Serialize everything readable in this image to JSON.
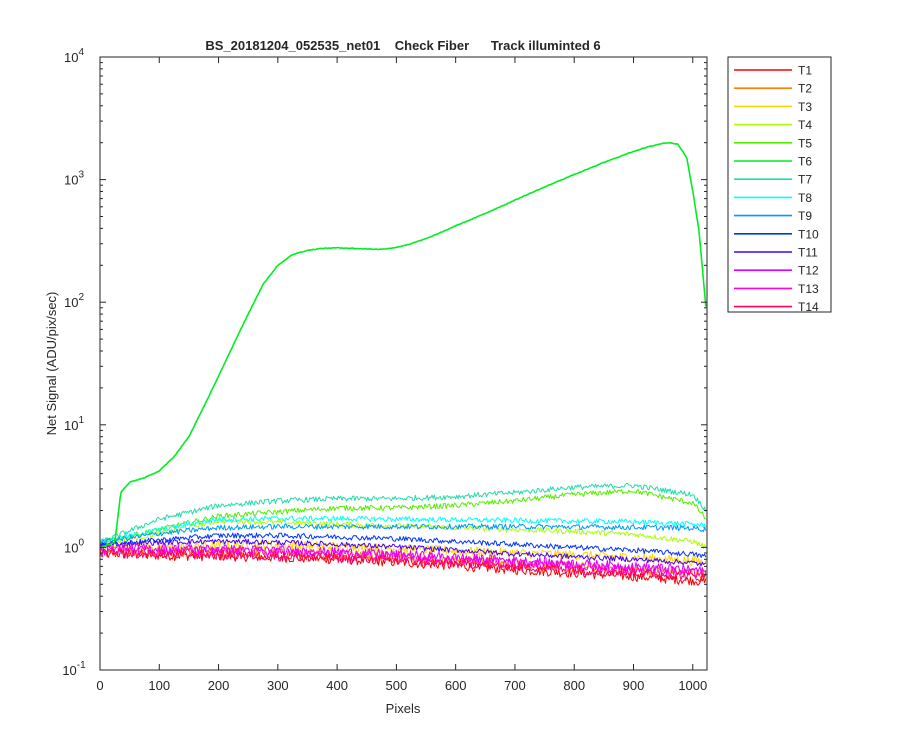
{
  "chart_data": {
    "type": "line",
    "title": "BS_20181204_052535_net01    Check Fiber      Track illuminted 6",
    "xlabel": "Pixels",
    "ylabel": "Net Signal (ADU/pix/sec)",
    "xlim": [
      0,
      1024
    ],
    "ylim": [
      0.1,
      10000
    ],
    "yscale": "log",
    "grid": false,
    "legend_position": "outside-right-top",
    "x_ticks": [
      "0",
      "100",
      "200",
      "300",
      "400",
      "500",
      "600",
      "700",
      "800",
      "900",
      "1000"
    ],
    "y_ticks": [
      {
        "base": "10",
        "exp": "-1"
      },
      {
        "base": "10",
        "exp": "0"
      },
      {
        "base": "10",
        "exp": "1"
      },
      {
        "base": "10",
        "exp": "2"
      },
      {
        "base": "10",
        "exp": "3"
      },
      {
        "base": "10",
        "exp": "4"
      }
    ],
    "series": [
      {
        "name": "T1",
        "color": "#ff0000",
        "x": [
          0,
          100,
          200,
          300,
          400,
          500,
          600,
          700,
          800,
          900,
          1000,
          1023
        ],
        "y": [
          0.9,
          0.86,
          0.85,
          0.83,
          0.8,
          0.76,
          0.71,
          0.66,
          0.62,
          0.58,
          0.54,
          0.52
        ]
      },
      {
        "name": "T2",
        "color": "#ff7f00",
        "x": [
          0,
          100,
          200,
          300,
          400,
          500,
          600,
          700,
          800,
          900,
          1000,
          1023
        ],
        "y": [
          0.95,
          0.92,
          0.92,
          0.9,
          0.87,
          0.84,
          0.79,
          0.74,
          0.7,
          0.66,
          0.62,
          0.6
        ]
      },
      {
        "name": "T3",
        "color": "#ffd400",
        "x": [
          0,
          100,
          200,
          300,
          400,
          500,
          600,
          700,
          800,
          900,
          1000,
          1023
        ],
        "y": [
          1.0,
          1.0,
          1.04,
          1.04,
          1.02,
          0.98,
          0.94,
          0.9,
          0.87,
          0.83,
          0.78,
          0.75
        ]
      },
      {
        "name": "T4",
        "color": "#aaff00",
        "x": [
          0,
          100,
          200,
          300,
          400,
          500,
          600,
          700,
          800,
          900,
          1000,
          1023
        ],
        "y": [
          1.05,
          1.3,
          1.65,
          1.6,
          1.55,
          1.5,
          1.45,
          1.4,
          1.35,
          1.28,
          1.12,
          1.0
        ]
      },
      {
        "name": "T5",
        "color": "#55ee00",
        "x": [
          0,
          100,
          200,
          300,
          400,
          500,
          600,
          700,
          800,
          900,
          1000,
          1023
        ],
        "y": [
          1.1,
          1.4,
          1.8,
          1.95,
          2.1,
          2.1,
          2.2,
          2.4,
          2.7,
          2.9,
          2.3,
          1.7
        ]
      },
      {
        "name": "T6",
        "color": "#00ee22",
        "x": [
          0,
          25,
          35,
          50,
          75,
          100,
          125,
          150,
          175,
          200,
          225,
          250,
          275,
          300,
          325,
          350,
          375,
          400,
          425,
          450,
          475,
          500,
          525,
          550,
          575,
          600,
          625,
          650,
          675,
          700,
          725,
          750,
          775,
          800,
          825,
          850,
          875,
          900,
          925,
          950,
          960,
          975,
          990,
          1000,
          1010,
          1020,
          1023
        ],
        "y": [
          1.0,
          1.1,
          2.8,
          3.4,
          3.7,
          4.2,
          5.5,
          8.0,
          14,
          25,
          45,
          80,
          140,
          200,
          245,
          265,
          275,
          278,
          275,
          272,
          270,
          280,
          300,
          330,
          370,
          420,
          470,
          530,
          600,
          680,
          770,
          870,
          980,
          1100,
          1230,
          1380,
          1530,
          1700,
          1850,
          1980,
          2000,
          1950,
          1500,
          800,
          400,
          120,
          80
        ]
      },
      {
        "name": "T7",
        "color": "#22ddaa",
        "x": [
          0,
          100,
          200,
          300,
          400,
          500,
          600,
          700,
          800,
          900,
          1000,
          1023
        ],
        "y": [
          1.1,
          1.7,
          2.2,
          2.4,
          2.5,
          2.5,
          2.6,
          2.8,
          3.1,
          3.2,
          2.7,
          2.0
        ]
      },
      {
        "name": "T8",
        "color": "#00ffff",
        "x": [
          0,
          100,
          200,
          300,
          400,
          500,
          600,
          700,
          800,
          900,
          1000,
          1023
        ],
        "y": [
          1.1,
          1.4,
          1.7,
          1.72,
          1.72,
          1.7,
          1.68,
          1.66,
          1.64,
          1.62,
          1.55,
          1.5
        ]
      },
      {
        "name": "T9",
        "color": "#0099ff",
        "x": [
          0,
          100,
          200,
          300,
          400,
          500,
          600,
          700,
          800,
          900,
          1000,
          1023
        ],
        "y": [
          1.1,
          1.3,
          1.45,
          1.48,
          1.48,
          1.48,
          1.48,
          1.48,
          1.47,
          1.46,
          1.44,
          1.4
        ]
      },
      {
        "name": "T10",
        "color": "#0033ff",
        "x": [
          0,
          100,
          200,
          300,
          400,
          500,
          600,
          700,
          800,
          900,
          1000,
          1023
        ],
        "y": [
          1.05,
          1.15,
          1.25,
          1.25,
          1.22,
          1.18,
          1.12,
          1.06,
          1.0,
          0.95,
          0.88,
          0.84
        ]
      },
      {
        "name": "T11",
        "color": "#4400ff",
        "x": [
          0,
          100,
          200,
          300,
          400,
          500,
          600,
          700,
          800,
          900,
          1000,
          1023
        ],
        "y": [
          1.05,
          1.1,
          1.12,
          1.1,
          1.06,
          1.01,
          0.95,
          0.89,
          0.84,
          0.8,
          0.75,
          0.72
        ]
      },
      {
        "name": "T12",
        "color": "#dd00ff",
        "x": [
          0,
          100,
          200,
          300,
          400,
          500,
          600,
          700,
          800,
          900,
          1000,
          1023
        ],
        "y": [
          1.0,
          0.98,
          0.97,
          0.95,
          0.92,
          0.88,
          0.83,
          0.78,
          0.74,
          0.7,
          0.66,
          0.63
        ]
      },
      {
        "name": "T13",
        "color": "#ff00dd",
        "x": [
          0,
          100,
          200,
          300,
          400,
          500,
          600,
          700,
          800,
          900,
          1000,
          1023
        ],
        "y": [
          0.95,
          0.94,
          0.93,
          0.91,
          0.88,
          0.84,
          0.79,
          0.75,
          0.7,
          0.66,
          0.62,
          0.6
        ]
      },
      {
        "name": "T14",
        "color": "#ff0066",
        "x": [
          0,
          100,
          200,
          300,
          400,
          500,
          600,
          700,
          800,
          900,
          1000,
          1023
        ],
        "y": [
          0.9,
          0.88,
          0.87,
          0.85,
          0.82,
          0.78,
          0.74,
          0.7,
          0.66,
          0.62,
          0.58,
          0.56
        ]
      }
    ]
  }
}
